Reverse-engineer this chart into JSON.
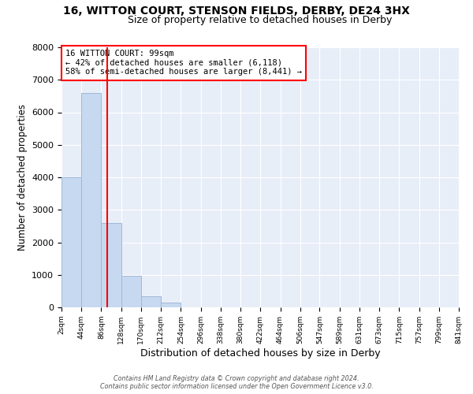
{
  "title_line1": "16, WITTON COURT, STENSON FIELDS, DERBY, DE24 3HX",
  "title_line2": "Size of property relative to detached houses in Derby",
  "xlabel": "Distribution of detached houses by size in Derby",
  "ylabel": "Number of detached properties",
  "bin_edges": [
    2,
    44,
    86,
    128,
    170,
    212,
    254,
    296,
    338,
    380,
    422,
    464,
    506,
    547,
    589,
    631,
    673,
    715,
    757,
    799,
    841
  ],
  "bar_heights": [
    4000,
    6600,
    2600,
    970,
    330,
    140,
    0,
    0,
    0,
    0,
    0,
    0,
    0,
    0,
    0,
    0,
    0,
    0,
    0,
    0
  ],
  "bar_color": "#c6d9f0",
  "bar_edge_color": "#a0b8d8",
  "vline_x": 99,
  "vline_color": "red",
  "ylim": [
    0,
    8000
  ],
  "yticks": [
    0,
    1000,
    2000,
    3000,
    4000,
    5000,
    6000,
    7000,
    8000
  ],
  "annotation_text": "16 WITTON COURT: 99sqm\n← 42% of detached houses are smaller (6,118)\n58% of semi-detached houses are larger (8,441) →",
  "annotation_box_color": "white",
  "annotation_box_edge_color": "red",
  "footer_line1": "Contains HM Land Registry data © Crown copyright and database right 2024.",
  "footer_line2": "Contains public sector information licensed under the Open Government Licence v3.0.",
  "plot_bg_color": "#e8eef8",
  "fig_bg_color": "#ffffff",
  "tick_labels": [
    "2sqm",
    "44sqm",
    "86sqm",
    "128sqm",
    "170sqm",
    "212sqm",
    "254sqm",
    "296sqm",
    "338sqm",
    "380sqm",
    "422sqm",
    "464sqm",
    "506sqm",
    "547sqm",
    "589sqm",
    "631sqm",
    "673sqm",
    "715sqm",
    "757sqm",
    "799sqm",
    "841sqm"
  ]
}
